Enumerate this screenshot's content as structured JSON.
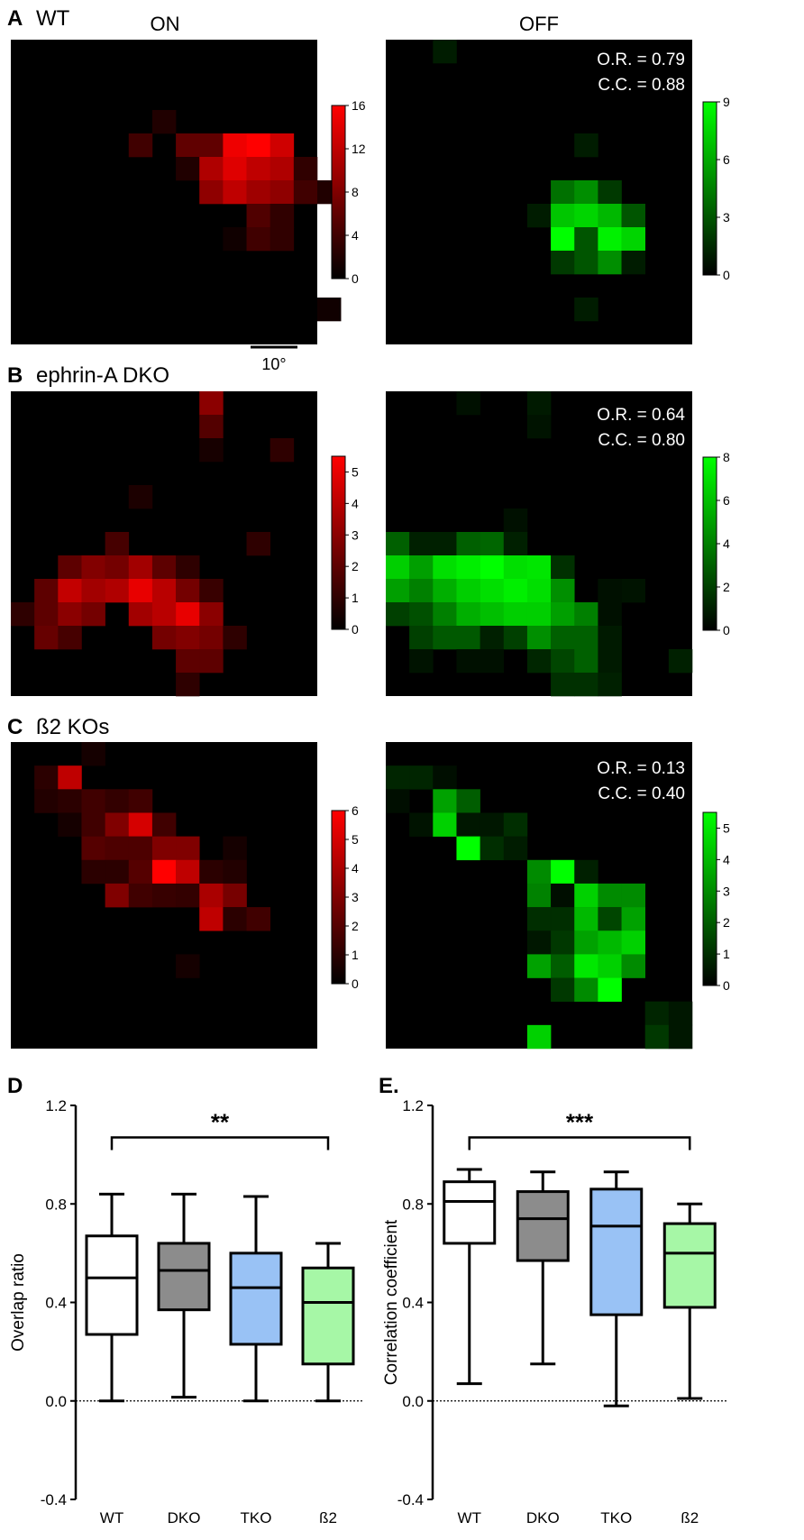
{
  "figure": {
    "column_titles": {
      "on": "ON",
      "off": "OFF"
    },
    "scale_bar_label": "10°"
  },
  "rows": [
    {
      "id": "A",
      "panel_letter": "A",
      "label": "WT",
      "on": {
        "max": 16,
        "ticks": [
          0,
          4,
          8,
          12,
          16
        ],
        "cells": [
          [
            3,
            6,
            2
          ],
          [
            4,
            5,
            4
          ],
          [
            4,
            7,
            6
          ],
          [
            4,
            8,
            6
          ],
          [
            4,
            9,
            15
          ],
          [
            4,
            10,
            16
          ],
          [
            4,
            11,
            13
          ],
          [
            5,
            7,
            2
          ],
          [
            5,
            8,
            11
          ],
          [
            5,
            9,
            14
          ],
          [
            5,
            10,
            12
          ],
          [
            5,
            11,
            11
          ],
          [
            5,
            12,
            3
          ],
          [
            6,
            8,
            9
          ],
          [
            6,
            9,
            12
          ],
          [
            6,
            10,
            10
          ],
          [
            6,
            11,
            9
          ],
          [
            6,
            12,
            4
          ],
          [
            6,
            13,
            2
          ],
          [
            7,
            10,
            5
          ],
          [
            7,
            11,
            3
          ],
          [
            8,
            9,
            1
          ],
          [
            8,
            10,
            4
          ],
          [
            8,
            11,
            3
          ],
          [
            11,
            13,
            1
          ]
        ]
      },
      "off": {
        "max": 9,
        "ticks": [
          0,
          3,
          6,
          9
        ],
        "cells": [
          [
            0,
            2,
            1
          ],
          [
            4,
            8,
            1
          ],
          [
            6,
            7,
            4
          ],
          [
            6,
            8,
            5
          ],
          [
            6,
            9,
            2
          ],
          [
            7,
            6,
            1
          ],
          [
            7,
            7,
            7
          ],
          [
            7,
            8,
            7.5
          ],
          [
            7,
            9,
            6.5
          ],
          [
            7,
            10,
            3
          ],
          [
            8,
            7,
            9
          ],
          [
            8,
            8,
            3
          ],
          [
            8,
            9,
            8.5
          ],
          [
            8,
            10,
            7.5
          ],
          [
            9,
            7,
            2
          ],
          [
            9,
            8,
            3
          ],
          [
            9,
            9,
            5
          ],
          [
            9,
            10,
            1
          ],
          [
            11,
            8,
            1
          ]
        ]
      },
      "stats": {
        "or": "O.R. = 0.79",
        "cc": "C.C. = 0.88"
      }
    },
    {
      "id": "B",
      "panel_letter": "B",
      "label": "ephrin-A DKO",
      "on": {
        "max": 5.5,
        "ticks": [
          0,
          1,
          2,
          3,
          4,
          5
        ],
        "cells": [
          [
            0,
            8,
            3
          ],
          [
            1,
            8,
            1.8
          ],
          [
            2,
            8,
            0.5
          ],
          [
            2,
            11,
            1
          ],
          [
            4,
            5,
            0.6
          ],
          [
            6,
            4,
            1.5
          ],
          [
            6,
            10,
            1
          ],
          [
            7,
            2,
            2
          ],
          [
            7,
            3,
            2.8
          ],
          [
            7,
            4,
            2.5
          ],
          [
            7,
            5,
            3.5
          ],
          [
            7,
            6,
            2
          ],
          [
            7,
            7,
            1
          ],
          [
            8,
            1,
            2
          ],
          [
            8,
            2,
            4.2
          ],
          [
            8,
            3,
            3.5
          ],
          [
            8,
            4,
            3.8
          ],
          [
            8,
            5,
            5
          ],
          [
            8,
            6,
            4
          ],
          [
            8,
            7,
            2.5
          ],
          [
            8,
            8,
            1.2
          ],
          [
            9,
            0,
            1
          ],
          [
            9,
            1,
            2
          ],
          [
            9,
            2,
            3
          ],
          [
            9,
            3,
            2.5
          ],
          [
            9,
            5,
            3.5
          ],
          [
            9,
            6,
            4
          ],
          [
            9,
            7,
            5
          ],
          [
            9,
            8,
            3
          ],
          [
            10,
            1,
            2.2
          ],
          [
            10,
            2,
            1.5
          ],
          [
            10,
            6,
            2.5
          ],
          [
            10,
            7,
            2.8
          ],
          [
            10,
            8,
            2.5
          ],
          [
            10,
            9,
            1
          ],
          [
            11,
            7,
            2
          ],
          [
            11,
            8,
            2
          ],
          [
            12,
            7,
            1
          ]
        ]
      },
      "off": {
        "max": 8,
        "ticks": [
          0,
          2,
          4,
          6,
          8
        ],
        "cells": [
          [
            0,
            3,
            0.5
          ],
          [
            0,
            6,
            0.8
          ],
          [
            1,
            6,
            0.6
          ],
          [
            5,
            5,
            0.5
          ],
          [
            6,
            0,
            3
          ],
          [
            6,
            1,
            1
          ],
          [
            6,
            2,
            1
          ],
          [
            6,
            3,
            3
          ],
          [
            6,
            4,
            3.2
          ],
          [
            6,
            5,
            1
          ],
          [
            7,
            0,
            6.5
          ],
          [
            7,
            1,
            5
          ],
          [
            7,
            2,
            7
          ],
          [
            7,
            3,
            7.5
          ],
          [
            7,
            4,
            8
          ],
          [
            7,
            5,
            7
          ],
          [
            7,
            6,
            7.2
          ],
          [
            7,
            7,
            1.5
          ],
          [
            8,
            0,
            5
          ],
          [
            8,
            1,
            4
          ],
          [
            8,
            2,
            5.5
          ],
          [
            8,
            3,
            6.5
          ],
          [
            8,
            4,
            7
          ],
          [
            8,
            5,
            7.5
          ],
          [
            8,
            6,
            7
          ],
          [
            8,
            7,
            4.5
          ],
          [
            8,
            9,
            0.5
          ],
          [
            8,
            10,
            0.6
          ],
          [
            9,
            0,
            2
          ],
          [
            9,
            1,
            2.5
          ],
          [
            9,
            2,
            4
          ],
          [
            9,
            3,
            5.5
          ],
          [
            9,
            4,
            6
          ],
          [
            9,
            5,
            6.5
          ],
          [
            9,
            6,
            6.5
          ],
          [
            9,
            7,
            5
          ],
          [
            9,
            8,
            4
          ],
          [
            9,
            9,
            0.5
          ],
          [
            10,
            1,
            2
          ],
          [
            10,
            2,
            2.8
          ],
          [
            10,
            3,
            2.8
          ],
          [
            10,
            4,
            1
          ],
          [
            10,
            5,
            2
          ],
          [
            10,
            6,
            4.5
          ],
          [
            10,
            7,
            3
          ],
          [
            10,
            8,
            3
          ],
          [
            10,
            9,
            0.8
          ],
          [
            11,
            1,
            0.6
          ],
          [
            11,
            3,
            0.5
          ],
          [
            11,
            4,
            0.5
          ],
          [
            11,
            6,
            1.2
          ],
          [
            11,
            7,
            2.2
          ],
          [
            11,
            8,
            3
          ],
          [
            11,
            9,
            0.8
          ],
          [
            11,
            12,
            1
          ],
          [
            12,
            7,
            1.5
          ],
          [
            12,
            8,
            1.5
          ],
          [
            12,
            9,
            1
          ]
        ]
      },
      "stats": {
        "or": "O.R. = 0.64",
        "cc": "C.C. = 0.80"
      }
    },
    {
      "id": "C",
      "panel_letter": "C",
      "label": "ß2 KOs",
      "on": {
        "max": 6,
        "ticks": [
          0,
          1,
          2,
          3,
          4,
          5,
          6
        ],
        "cells": [
          [
            0,
            3,
            0.5
          ],
          [
            1,
            1,
            1
          ],
          [
            1,
            2,
            4.5
          ],
          [
            2,
            1,
            0.8
          ],
          [
            2,
            2,
            1
          ],
          [
            2,
            3,
            1.5
          ],
          [
            2,
            4,
            1.2
          ],
          [
            2,
            5,
            1.5
          ],
          [
            3,
            2,
            0.5
          ],
          [
            3,
            3,
            1.5
          ],
          [
            3,
            4,
            3
          ],
          [
            3,
            5,
            5
          ],
          [
            3,
            6,
            1.5
          ],
          [
            4,
            3,
            2
          ],
          [
            4,
            4,
            1.8
          ],
          [
            4,
            5,
            1.8
          ],
          [
            4,
            6,
            3
          ],
          [
            4,
            7,
            3
          ],
          [
            4,
            9,
            0.5
          ],
          [
            5,
            3,
            1
          ],
          [
            5,
            4,
            1
          ],
          [
            5,
            5,
            2
          ],
          [
            5,
            6,
            6
          ],
          [
            5,
            7,
            4.5
          ],
          [
            5,
            8,
            1
          ],
          [
            5,
            9,
            0.8
          ],
          [
            6,
            4,
            3
          ],
          [
            6,
            5,
            1.5
          ],
          [
            6,
            6,
            1.3
          ],
          [
            6,
            7,
            1.2
          ],
          [
            6,
            8,
            4
          ],
          [
            6,
            9,
            2.8
          ],
          [
            7,
            8,
            4.5
          ],
          [
            7,
            9,
            1
          ],
          [
            7,
            10,
            1.5
          ],
          [
            9,
            7,
            0.5
          ]
        ]
      },
      "off": {
        "max": 5.5,
        "ticks": [
          0,
          1,
          2,
          3,
          4,
          5
        ],
        "cells": [
          [
            1,
            0,
            0.8
          ],
          [
            1,
            1,
            0.8
          ],
          [
            1,
            2,
            0.3
          ],
          [
            2,
            0,
            0.3
          ],
          [
            2,
            2,
            3.5
          ],
          [
            2,
            3,
            2
          ],
          [
            3,
            1,
            0.4
          ],
          [
            3,
            2,
            4.5
          ],
          [
            3,
            3,
            0.5
          ],
          [
            3,
            4,
            0.5
          ],
          [
            3,
            5,
            1
          ],
          [
            4,
            3,
            5.5
          ],
          [
            4,
            4,
            1
          ],
          [
            4,
            5,
            0.6
          ],
          [
            5,
            6,
            3
          ],
          [
            5,
            7,
            5.5
          ],
          [
            5,
            8,
            0.7
          ],
          [
            6,
            6,
            2.8
          ],
          [
            6,
            7,
            0.3
          ],
          [
            6,
            8,
            4.5
          ],
          [
            6,
            9,
            3
          ],
          [
            6,
            10,
            3
          ],
          [
            7,
            6,
            1
          ],
          [
            7,
            7,
            1
          ],
          [
            7,
            8,
            4
          ],
          [
            7,
            9,
            1.5
          ],
          [
            7,
            10,
            3.5
          ],
          [
            8,
            6,
            0.5
          ],
          [
            8,
            7,
            1.2
          ],
          [
            8,
            8,
            3.5
          ],
          [
            8,
            9,
            4
          ],
          [
            8,
            10,
            4.5
          ],
          [
            9,
            6,
            3.5
          ],
          [
            9,
            7,
            2
          ],
          [
            9,
            8,
            5
          ],
          [
            9,
            9,
            4.5
          ],
          [
            9,
            10,
            3
          ],
          [
            10,
            7,
            1.2
          ],
          [
            10,
            8,
            3
          ],
          [
            10,
            9,
            5.5
          ],
          [
            11,
            11,
            0.8
          ],
          [
            11,
            12,
            0.5
          ],
          [
            12,
            6,
            4.5
          ],
          [
            12,
            11,
            1.2
          ],
          [
            12,
            12,
            0.5
          ]
        ]
      },
      "stats": {
        "or": "O.R. = 0.13",
        "cc": "C.C. = 0.40"
      }
    }
  ],
  "chart_data": [
    {
      "type": "box",
      "panel_letter": "D",
      "title": "",
      "xlabel": "",
      "ylabel": "Overlap ratio",
      "ylim": [
        -0.4,
        1.2
      ],
      "yticks": [
        "-0.4",
        "0.0",
        "0.4",
        "0.8",
        "1.2"
      ],
      "zero_line": true,
      "categories": [
        "WT",
        "DKO",
        "TKO",
        "ß2"
      ],
      "colors": [
        "#ffffff",
        "#8c8c8c",
        "#99c2f5",
        "#a6f7a6"
      ],
      "boxes": [
        {
          "min": 0.0,
          "q1": 0.27,
          "median": 0.5,
          "q3": 0.67,
          "max": 0.84
        },
        {
          "min": 0.015,
          "q1": 0.37,
          "median": 0.53,
          "q3": 0.64,
          "max": 0.84
        },
        {
          "min": 0.0,
          "q1": 0.23,
          "median": 0.46,
          "q3": 0.6,
          "max": 0.83
        },
        {
          "min": 0.0,
          "q1": 0.15,
          "median": 0.4,
          "q3": 0.54,
          "max": 0.64
        }
      ],
      "significance": {
        "from": "WT",
        "to": "ß2",
        "y": 1.07,
        "label": "**"
      }
    },
    {
      "type": "box",
      "panel_letter": "E.",
      "title": "",
      "xlabel": "",
      "ylabel": "Correlation coefficient",
      "ylim": [
        -0.4,
        1.2
      ],
      "yticks": [
        "-0.4",
        "0.0",
        "0.4",
        "0.8",
        "1.2"
      ],
      "zero_line": true,
      "categories": [
        "WT",
        "DKO",
        "TKO",
        "ß2"
      ],
      "colors": [
        "#ffffff",
        "#8c8c8c",
        "#99c2f5",
        "#a6f7a6"
      ],
      "boxes": [
        {
          "min": 0.07,
          "q1": 0.64,
          "median": 0.81,
          "q3": 0.89,
          "max": 0.94
        },
        {
          "min": 0.15,
          "q1": 0.57,
          "median": 0.74,
          "q3": 0.85,
          "max": 0.93
        },
        {
          "min": -0.02,
          "q1": 0.35,
          "median": 0.71,
          "q3": 0.86,
          "max": 0.93
        },
        {
          "min": 0.01,
          "q1": 0.38,
          "median": 0.6,
          "q3": 0.72,
          "max": 0.8
        }
      ],
      "significance": {
        "from": "WT",
        "to": "ß2",
        "y": 1.07,
        "label": "***"
      }
    }
  ],
  "colors": {
    "on_map": "#ff0000",
    "off_map": "#00ff00",
    "map_background": "#000000"
  }
}
